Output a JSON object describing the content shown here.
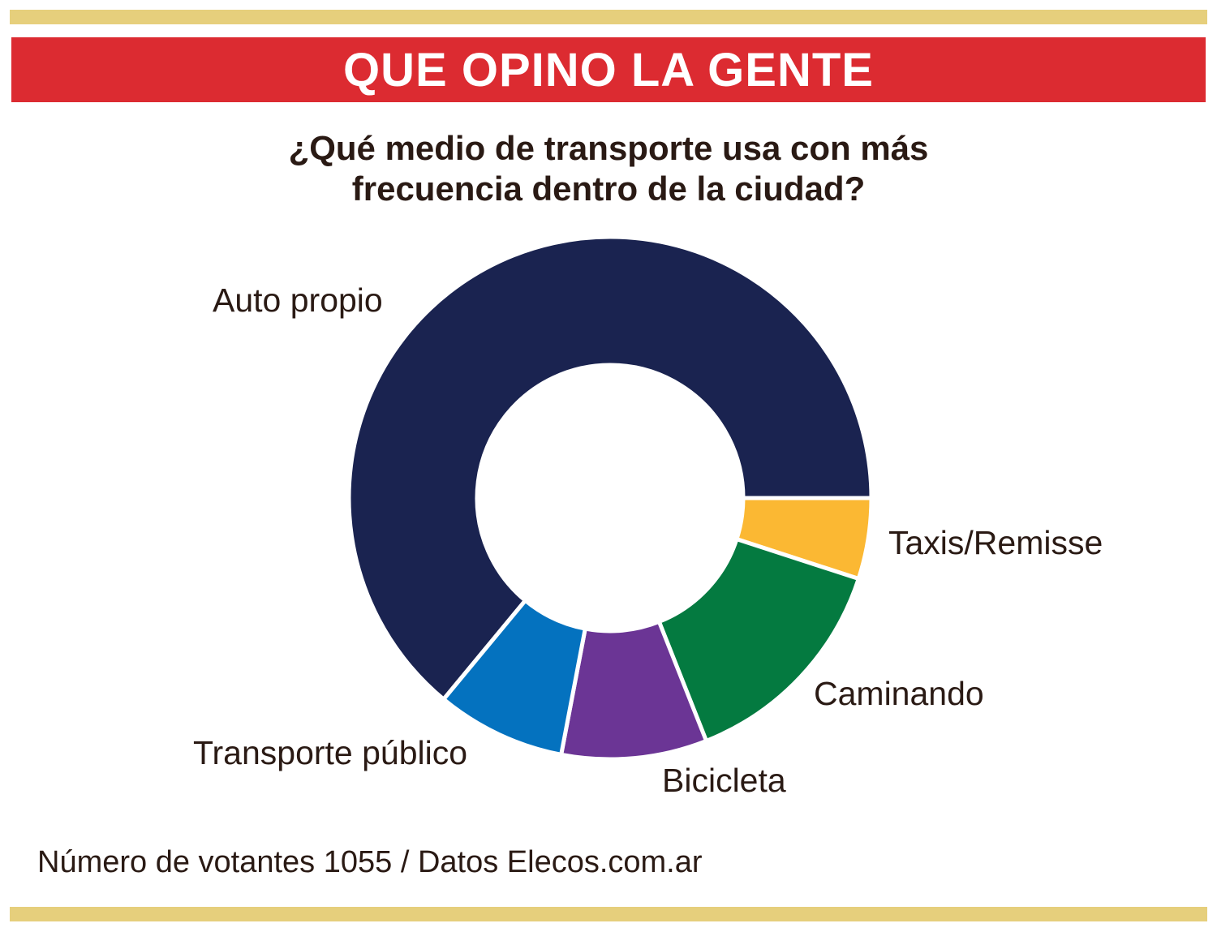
{
  "header": {
    "title": "QUE OPINO LA GENTE"
  },
  "chart_data": {
    "type": "pie",
    "title": "¿Qué medio de transporte usa con más frecuencia dentro de la ciudad?",
    "title_lines": [
      "¿Qué medio de transporte usa con más",
      "frecuencia dentro de la ciudad?"
    ],
    "categories": [
      "Auto propio",
      "Taxis/Remisse",
      "Caminando",
      "Bicicleta",
      "Transporte público"
    ],
    "values": [
      64,
      5,
      14,
      9,
      8
    ],
    "colors": [
      "#1a2350",
      "#fbb833",
      "#047a40",
      "#6b3595",
      "#0472bf"
    ],
    "donut": true,
    "legend": "labels-outside"
  },
  "footer": {
    "note": "Número de votantes 1055 / Datos Elecos.com.ar"
  },
  "style": {
    "banner_color": "#dc2b31",
    "rule_color": "#e6cf7c"
  }
}
